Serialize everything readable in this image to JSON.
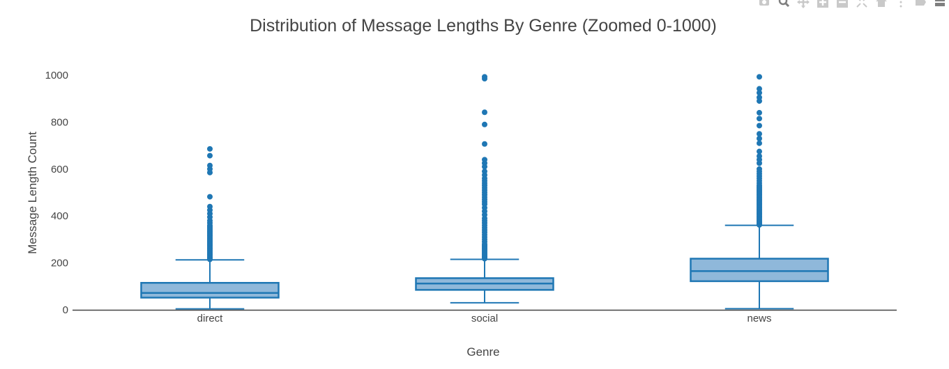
{
  "modebar": {
    "buttons": [
      {
        "name": "camera-icon"
      },
      {
        "name": "zoom-icon"
      },
      {
        "name": "pan-icon"
      },
      {
        "name": "zoom-in-icon"
      },
      {
        "name": "zoom-out-icon"
      },
      {
        "name": "autoscale-icon"
      },
      {
        "name": "reset-axes-icon"
      },
      {
        "name": "spike-lines-icon"
      },
      {
        "name": "hover-closest-icon"
      },
      {
        "name": "hover-compare-icon"
      }
    ]
  },
  "chart_data": {
    "type": "box",
    "title": "Distribution of Message Lengths By Genre (Zoomed 0-1000)",
    "xlabel": "Genre",
    "ylabel": "Message Length Count",
    "ylim": [
      0,
      1000
    ],
    "yticks": [
      0,
      200,
      400,
      600,
      800,
      1000
    ],
    "categories": [
      "direct",
      "social",
      "news"
    ],
    "color": "#1f77b4",
    "fill_color": "#8fb8da",
    "boxes": [
      {
        "category": "direct",
        "lower_fence": 4,
        "q1": 52,
        "median": 72,
        "q3": 115,
        "upper_fence": 213,
        "outliers": [
          215,
          220,
          225,
          230,
          235,
          240,
          245,
          250,
          255,
          260,
          265,
          270,
          275,
          280,
          285,
          290,
          295,
          300,
          305,
          310,
          315,
          320,
          325,
          330,
          335,
          340,
          345,
          350,
          355,
          360,
          370,
          380,
          395,
          410,
          425,
          440,
          482,
          585,
          600,
          615,
          657,
          686
        ]
      },
      {
        "category": "social",
        "lower_fence": 30,
        "q1": 85,
        "median": 112,
        "q3": 135,
        "upper_fence": 215,
        "outliers": [
          218,
          222,
          226,
          230,
          235,
          240,
          245,
          250,
          255,
          260,
          265,
          270,
          275,
          280,
          290,
          300,
          310,
          320,
          330,
          340,
          350,
          360,
          370,
          380,
          390,
          405,
          420,
          435,
          450,
          460,
          470,
          480,
          490,
          500,
          510,
          520,
          530,
          540,
          550,
          560,
          575,
          590,
          610,
          625,
          640,
          707,
          790,
          842,
          985,
          993
        ]
      },
      {
        "category": "news",
        "lower_fence": 5,
        "q1": 122,
        "median": 165,
        "q3": 218,
        "upper_fence": 360,
        "outliers": [
          362,
          366,
          370,
          375,
          380,
          385,
          390,
          395,
          400,
          405,
          410,
          415,
          420,
          425,
          430,
          435,
          440,
          445,
          450,
          455,
          460,
          465,
          470,
          475,
          480,
          485,
          490,
          495,
          500,
          505,
          510,
          515,
          520,
          525,
          530,
          540,
          550,
          560,
          570,
          580,
          590,
          600,
          625,
          640,
          655,
          675,
          710,
          730,
          750,
          785,
          815,
          840,
          890,
          905,
          925,
          942,
          993
        ]
      }
    ]
  }
}
